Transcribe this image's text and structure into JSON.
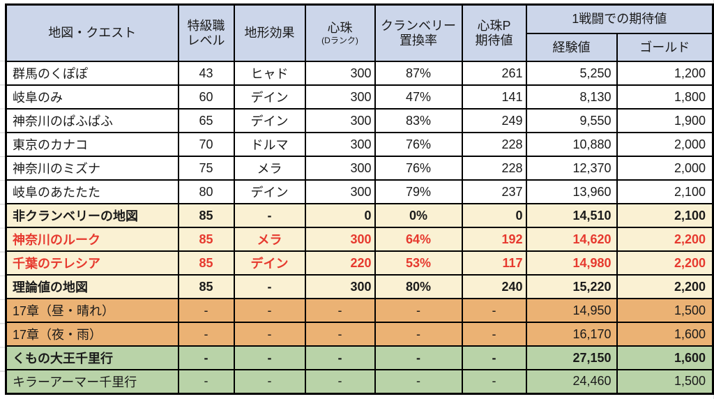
{
  "colors": {
    "header_bg": "#ccd6ea",
    "cream_row_bg": "#faf1d3",
    "orange_row_bg": "#ebb274",
    "green_row_bg": "#b9d3a8",
    "red_text": "#e6392e",
    "border": "#000000"
  },
  "table": {
    "headers": {
      "map_quest": "地図・クエスト",
      "level_line1": "特級職",
      "level_line2": "レベル",
      "terrain": "地形効果",
      "pearl_line1": "心珠",
      "pearl_line2": "(Dランク)",
      "cranberry_line1": "クランベリー",
      "cranberry_line2": "置換率",
      "pearl_p_line1": "心珠P",
      "pearl_p_line2": "期待値",
      "battle_group": "1戦闘での期待値",
      "exp": "経験値",
      "gold": "ゴールド"
    },
    "rows": [
      {
        "name": "群馬のくぽぽ",
        "level": "43",
        "terrain": "ヒャド",
        "pearl": "300",
        "rate": "87%",
        "pearl_p": "261",
        "exp": "5,250",
        "gold": "1,200",
        "bg": "white",
        "text": "normal"
      },
      {
        "name": "岐阜のみ",
        "level": "60",
        "terrain": "デイン",
        "pearl": "300",
        "rate": "47%",
        "pearl_p": "141",
        "exp": "8,130",
        "gold": "1,800",
        "bg": "white",
        "text": "normal"
      },
      {
        "name": "神奈川のぱふぱふ",
        "level": "65",
        "terrain": "デイン",
        "pearl": "300",
        "rate": "83%",
        "pearl_p": "249",
        "exp": "9,550",
        "gold": "1,900",
        "bg": "white",
        "text": "normal"
      },
      {
        "name": "東京のカナコ",
        "level": "70",
        "terrain": "ドルマ",
        "pearl": "300",
        "rate": "76%",
        "pearl_p": "228",
        "exp": "10,880",
        "gold": "2,000",
        "bg": "white",
        "text": "normal"
      },
      {
        "name": "神奈川のミズナ",
        "level": "75",
        "terrain": "メラ",
        "pearl": "300",
        "rate": "76%",
        "pearl_p": "228",
        "exp": "12,370",
        "gold": "2,000",
        "bg": "white",
        "text": "normal"
      },
      {
        "name": "岐阜のあたたた",
        "level": "80",
        "terrain": "デイン",
        "pearl": "300",
        "rate": "79%",
        "pearl_p": "237",
        "exp": "13,960",
        "gold": "2,100",
        "bg": "white",
        "text": "normal"
      },
      {
        "name": "非クランベリーの地図",
        "level": "85",
        "terrain": "-",
        "pearl": "0",
        "rate": "0%",
        "pearl_p": "0",
        "exp": "14,510",
        "gold": "2,100",
        "bg": "cream",
        "text": "bold"
      },
      {
        "name": "神奈川のルーク",
        "level": "85",
        "terrain": "メラ",
        "pearl": "300",
        "rate": "64%",
        "pearl_p": "192",
        "exp": "14,620",
        "gold": "2,200",
        "bg": "cream",
        "text": "red"
      },
      {
        "name": "千葉のテレシア",
        "level": "85",
        "terrain": "デイン",
        "pearl": "220",
        "rate": "53%",
        "pearl_p": "117",
        "exp": "14,980",
        "gold": "2,200",
        "bg": "cream",
        "text": "red"
      },
      {
        "name": "理論値の地図",
        "level": "85",
        "terrain": "-",
        "pearl": "300",
        "rate": "80%",
        "pearl_p": "240",
        "exp": "15,220",
        "gold": "2,200",
        "bg": "cream",
        "text": "bold"
      },
      {
        "name": "17章（昼・晴れ）",
        "level": "-",
        "terrain": "-",
        "pearl": "-",
        "rate": "-",
        "pearl_p": "-",
        "exp": "14,950",
        "gold": "1,500",
        "bg": "orange",
        "text": "normal"
      },
      {
        "name": "17章（夜・雨）",
        "level": "-",
        "terrain": "-",
        "pearl": "-",
        "rate": "-",
        "pearl_p": "-",
        "exp": "16,170",
        "gold": "1,600",
        "bg": "orange",
        "text": "normal"
      },
      {
        "name": "くもの大王千里行",
        "level": "-",
        "terrain": "-",
        "pearl": "-",
        "rate": "-",
        "pearl_p": "-",
        "exp": "27,150",
        "gold": "1,600",
        "bg": "green",
        "text": "bold"
      },
      {
        "name": "キラーアーマー千里行",
        "level": "-",
        "terrain": "-",
        "pearl": "-",
        "rate": "-",
        "pearl_p": "-",
        "exp": "24,460",
        "gold": "1,500",
        "bg": "green",
        "text": "normal"
      }
    ]
  }
}
